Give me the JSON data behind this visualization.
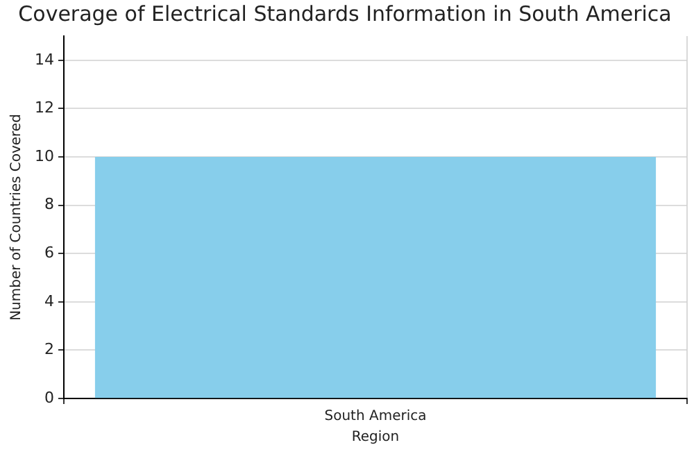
{
  "chart_data": {
    "type": "bar",
    "title": "Coverage of Electrical Standards Information in South America",
    "xlabel": "Region",
    "ylabel": "Number of Countries Covered",
    "categories": [
      "South America"
    ],
    "values": [
      10
    ],
    "color": "#87ceeb",
    "ylim": [
      0,
      15
    ],
    "yticks": [
      0,
      2,
      4,
      6,
      8,
      10,
      12,
      14
    ],
    "grid": true
  }
}
